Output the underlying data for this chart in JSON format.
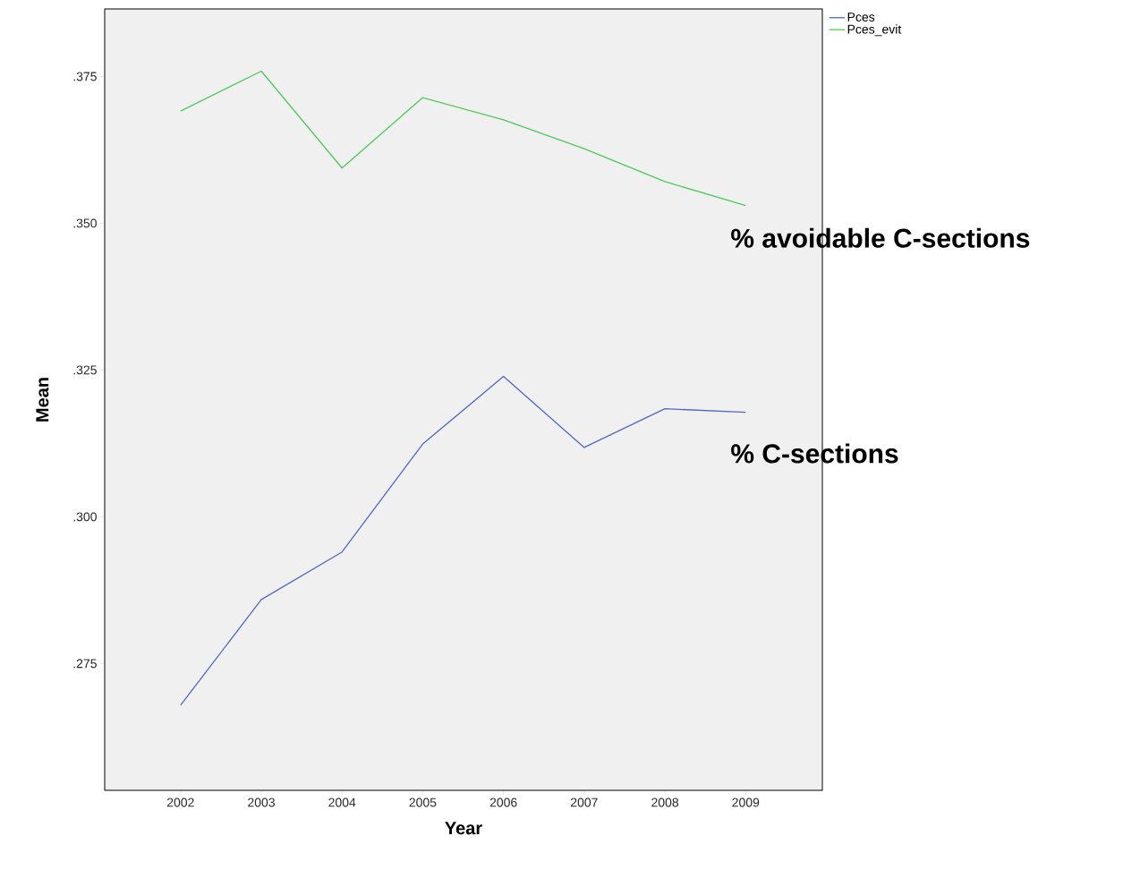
{
  "chart_data": {
    "type": "line",
    "xlabel": "Year",
    "ylabel": "Mean",
    "x": [
      2002,
      2003,
      2004,
      2005,
      2006,
      2007,
      2008,
      2009
    ],
    "series": [
      {
        "name": "Pces",
        "color": "#5468c0",
        "values": [
          0.2679,
          0.2859,
          0.294,
          0.3124,
          0.3239,
          0.3118,
          0.3184,
          0.3178
        ]
      },
      {
        "name": "Pces_evit",
        "color": "#4ec95a",
        "values": [
          0.3691,
          0.3759,
          0.3594,
          0.3714,
          0.3676,
          0.3627,
          0.3571,
          0.353
        ]
      }
    ],
    "xlim": [
      2001.06,
      2009.95
    ],
    "xticks": [
      2002,
      2003,
      2004,
      2005,
      2006,
      2007,
      2008,
      2009
    ],
    "ylim": [
      0.2534,
      0.3865
    ],
    "yticks": [
      {
        "value": 0.275,
        "label": ".275"
      },
      {
        "value": 0.3,
        "label": ".300"
      },
      {
        "value": 0.325,
        "label": ".325"
      },
      {
        "value": 0.35,
        "label": ".350"
      },
      {
        "value": 0.375,
        "label": ".375"
      }
    ],
    "legend": "top right",
    "grid": false,
    "marker": "none",
    "line_style": "solid",
    "annotations": [
      "% avoidable C-sections",
      "% C-sections"
    ]
  }
}
